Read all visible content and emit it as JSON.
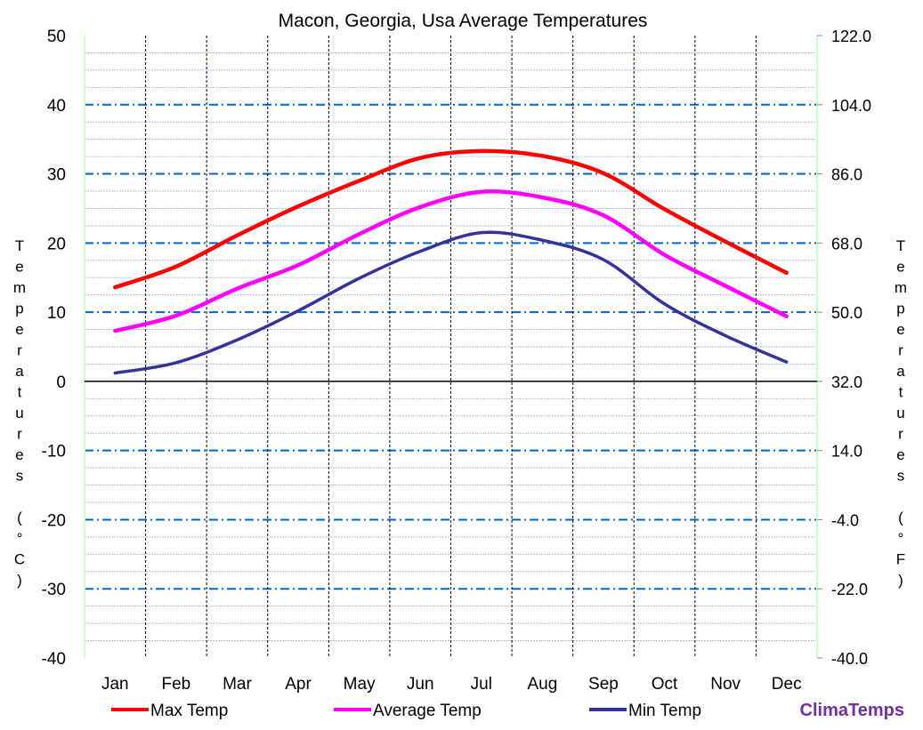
{
  "chart_data": {
    "type": "line",
    "title": "Macon, Georgia, Usa Average Temperatures",
    "categories": [
      "Jan",
      "Feb",
      "Mar",
      "Apr",
      "May",
      "Jun",
      "Jul",
      "Aug",
      "Sep",
      "Oct",
      "Nov",
      "Dec"
    ],
    "series": [
      {
        "name": "Max Temp",
        "color": "#ff0000",
        "values": [
          13.6,
          16.6,
          21.1,
          25.3,
          29.0,
          32.3,
          33.3,
          32.6,
          30.1,
          24.9,
          20.2,
          15.7
        ]
      },
      {
        "name": "Average Temp",
        "color": "#ff00ff",
        "values": [
          7.3,
          9.5,
          13.4,
          16.8,
          21.3,
          25.2,
          27.4,
          26.6,
          24.0,
          18.3,
          13.8,
          9.4
        ]
      },
      {
        "name": "Min Temp",
        "color": "#333399",
        "values": [
          1.2,
          2.7,
          6.0,
          10.2,
          14.9,
          18.8,
          21.5,
          20.4,
          17.6,
          11.2,
          6.6,
          2.8
        ]
      }
    ],
    "ylabel": "Temperatures (°C)",
    "y2label": "Temperatures (°F)",
    "ylim": [
      -40,
      50
    ],
    "yticks": [
      "50",
      "40",
      "30",
      "20",
      "10",
      "0",
      "-10",
      "-20",
      "-30",
      "-40"
    ],
    "y2ticks": [
      "122.0",
      "104.0",
      "86.0",
      "68.0",
      "50.0",
      "32.0",
      "14.0",
      "-4.0",
      "-22.0",
      "-40.0"
    ],
    "grid": true,
    "legend": "bottom"
  },
  "brand": "ClimaTemps"
}
